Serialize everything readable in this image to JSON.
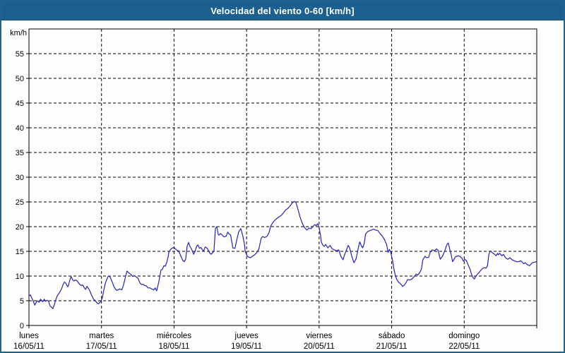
{
  "window": {
    "title": "Velocidad del viento 0-60 [km/h]"
  },
  "colors": {
    "titlebar_bg": "#1c6090",
    "titlebar_text": "#ffffff",
    "window_border": "#20638f",
    "background": "#fdfefd",
    "plot_background": "#fefefe",
    "grid": "#000000",
    "axis": "#000000",
    "text": "#000000",
    "line": "#2424b4"
  },
  "chart_data": {
    "type": "line",
    "title": "Velocidad del viento 0-60 [km/h]",
    "ylabel": "km/h",
    "ylim": [
      0,
      60
    ],
    "yticks": [
      0,
      5,
      10,
      15,
      20,
      25,
      30,
      35,
      40,
      45,
      50,
      55
    ],
    "grid": "dashed",
    "legend": "none",
    "x_axis": {
      "unit": "days",
      "range_days": [
        0,
        7
      ],
      "day_labels": [
        {
          "name": "lunes",
          "date": "16/05/11"
        },
        {
          "name": "martes",
          "date": "17/05/11"
        },
        {
          "name": "miércoles",
          "date": "18/05/11"
        },
        {
          "name": "jueves",
          "date": "19/05/11"
        },
        {
          "name": "viernes",
          "date": "20/05/11"
        },
        {
          "name": "sábado",
          "date": "21/05/11"
        },
        {
          "name": "domingo",
          "date": "22/05/11"
        }
      ]
    },
    "series": [
      {
        "name": "velocidad del viento",
        "color": "#2424b4",
        "points": [
          [
            0.0,
            5.9
          ],
          [
            0.02,
            6.2
          ],
          [
            0.04,
            5.5
          ],
          [
            0.06,
            4.9
          ],
          [
            0.08,
            4.1
          ],
          [
            0.1,
            4.7
          ],
          [
            0.12,
            5.0
          ],
          [
            0.14,
            4.7
          ],
          [
            0.16,
            5.3
          ],
          [
            0.18,
            5.0
          ],
          [
            0.19,
            4.8
          ],
          [
            0.21,
            5.3
          ],
          [
            0.23,
            4.9
          ],
          [
            0.25,
            5.1
          ],
          [
            0.27,
            4.9
          ],
          [
            0.29,
            4.0
          ],
          [
            0.31,
            3.7
          ],
          [
            0.33,
            3.4
          ],
          [
            0.35,
            4.2
          ],
          [
            0.37,
            5.2
          ],
          [
            0.39,
            6.0
          ],
          [
            0.41,
            6.4
          ],
          [
            0.43,
            6.9
          ],
          [
            0.45,
            7.4
          ],
          [
            0.47,
            8.3
          ],
          [
            0.49,
            8.8
          ],
          [
            0.51,
            8.5
          ],
          [
            0.53,
            7.9
          ],
          [
            0.54,
            7.9
          ],
          [
            0.56,
            9.0
          ],
          [
            0.58,
            9.9
          ],
          [
            0.6,
            9.3
          ],
          [
            0.62,
            9.0
          ],
          [
            0.64,
            9.2
          ],
          [
            0.66,
            9.1
          ],
          [
            0.68,
            8.7
          ],
          [
            0.7,
            8.3
          ],
          [
            0.72,
            8.1
          ],
          [
            0.74,
            8.2
          ],
          [
            0.76,
            7.7
          ],
          [
            0.78,
            7.3
          ],
          [
            0.8,
            7.9
          ],
          [
            0.82,
            7.5
          ],
          [
            0.84,
            7.0
          ],
          [
            0.86,
            6.2
          ],
          [
            0.88,
            5.7
          ],
          [
            0.89,
            5.3
          ],
          [
            0.91,
            5.1
          ],
          [
            0.93,
            4.7
          ],
          [
            0.95,
            4.4
          ],
          [
            0.97,
            4.5
          ],
          [
            0.99,
            4.9
          ],
          [
            1.01,
            5.5
          ],
          [
            1.03,
            7.0
          ],
          [
            1.05,
            8.4
          ],
          [
            1.07,
            9.2
          ],
          [
            1.09,
            9.9
          ],
          [
            1.11,
            10.0
          ],
          [
            1.13,
            9.4
          ],
          [
            1.15,
            8.7
          ],
          [
            1.17,
            7.9
          ],
          [
            1.19,
            7.4
          ],
          [
            1.21,
            7.1
          ],
          [
            1.24,
            7.3
          ],
          [
            1.25,
            7.4
          ],
          [
            1.28,
            7.2
          ],
          [
            1.3,
            8.0
          ],
          [
            1.32,
            9.2
          ],
          [
            1.35,
            11.0
          ],
          [
            1.38,
            10.6
          ],
          [
            1.4,
            10.4
          ],
          [
            1.43,
            9.9
          ],
          [
            1.45,
            10.1
          ],
          [
            1.48,
            9.8
          ],
          [
            1.5,
            9.6
          ],
          [
            1.53,
            8.6
          ],
          [
            1.55,
            8.3
          ],
          [
            1.58,
            8.3
          ],
          [
            1.59,
            8.1
          ],
          [
            1.62,
            8.0
          ],
          [
            1.64,
            7.6
          ],
          [
            1.67,
            7.6
          ],
          [
            1.69,
            7.4
          ],
          [
            1.72,
            7.2
          ],
          [
            1.74,
            7.6
          ],
          [
            1.76,
            7.0
          ],
          [
            1.79,
            8.8
          ],
          [
            1.82,
            11.2
          ],
          [
            1.84,
            11.4
          ],
          [
            1.86,
            12.1
          ],
          [
            1.88,
            12.0
          ],
          [
            1.9,
            12.8
          ],
          [
            1.92,
            14.0
          ],
          [
            1.93,
            14.9
          ],
          [
            1.96,
            15.5
          ],
          [
            1.98,
            15.7
          ],
          [
            2.0,
            15.8
          ],
          [
            2.02,
            15.5
          ],
          [
            2.04,
            15.2
          ],
          [
            2.06,
            15.1
          ],
          [
            2.08,
            14.5
          ],
          [
            2.1,
            13.8
          ],
          [
            2.12,
            13.2
          ],
          [
            2.14,
            12.9
          ],
          [
            2.16,
            13.4
          ],
          [
            2.18,
            16.0
          ],
          [
            2.2,
            16.8
          ],
          [
            2.22,
            16.0
          ],
          [
            2.24,
            15.5
          ],
          [
            2.26,
            14.8
          ],
          [
            2.27,
            14.4
          ],
          [
            2.29,
            15.0
          ],
          [
            2.31,
            16.0
          ],
          [
            2.33,
            16.3
          ],
          [
            2.35,
            15.6
          ],
          [
            2.37,
            15.8
          ],
          [
            2.39,
            15.3
          ],
          [
            2.41,
            15.1
          ],
          [
            2.43,
            15.9
          ],
          [
            2.45,
            15.7
          ],
          [
            2.47,
            15.3
          ],
          [
            2.49,
            14.7
          ],
          [
            2.51,
            14.4
          ],
          [
            2.53,
            14.7
          ],
          [
            2.55,
            15.0
          ],
          [
            2.57,
            19.6
          ],
          [
            2.59,
            20.0
          ],
          [
            2.61,
            18.4
          ],
          [
            2.62,
            18.3
          ],
          [
            2.64,
            18.6
          ],
          [
            2.67,
            18.2
          ],
          [
            2.69,
            17.9
          ],
          [
            2.72,
            18.1
          ],
          [
            2.74,
            18.9
          ],
          [
            2.76,
            18.5
          ],
          [
            2.78,
            18.3
          ],
          [
            2.81,
            15.7
          ],
          [
            2.84,
            15.6
          ],
          [
            2.86,
            17.0
          ],
          [
            2.89,
            18.9
          ],
          [
            2.92,
            19.6
          ],
          [
            2.95,
            18.0
          ],
          [
            2.97,
            16.5
          ],
          [
            2.98,
            15.1
          ],
          [
            3.0,
            14.3
          ],
          [
            3.02,
            13.9
          ],
          [
            3.05,
            13.7
          ],
          [
            3.08,
            14.0
          ],
          [
            3.11,
            14.3
          ],
          [
            3.14,
            14.7
          ],
          [
            3.17,
            15.5
          ],
          [
            3.2,
            17.6
          ],
          [
            3.22,
            18.0
          ],
          [
            3.25,
            17.8
          ],
          [
            3.28,
            18.0
          ],
          [
            3.31,
            18.8
          ],
          [
            3.33,
            20.0
          ],
          [
            3.36,
            20.8
          ],
          [
            3.39,
            21.3
          ],
          [
            3.42,
            21.7
          ],
          [
            3.45,
            22.0
          ],
          [
            3.48,
            22.3
          ],
          [
            3.51,
            22.8
          ],
          [
            3.54,
            23.4
          ],
          [
            3.57,
            23.7
          ],
          [
            3.6,
            24.2
          ],
          [
            3.63,
            24.8
          ],
          [
            3.66,
            25.1
          ],
          [
            3.68,
            24.9
          ],
          [
            3.71,
            23.4
          ],
          [
            3.74,
            21.8
          ],
          [
            3.77,
            20.6
          ],
          [
            3.8,
            19.8
          ],
          [
            3.83,
            19.3
          ],
          [
            3.86,
            19.7
          ],
          [
            3.89,
            19.6
          ],
          [
            3.92,
            20.1
          ],
          [
            3.94,
            20.4
          ],
          [
            3.96,
            20.2
          ],
          [
            3.98,
            20.6
          ],
          [
            4.0,
            19.8
          ],
          [
            4.02,
            18.2
          ],
          [
            4.03,
            16.9
          ],
          [
            4.05,
            16.3
          ],
          [
            4.07,
            16.0
          ],
          [
            4.09,
            16.4
          ],
          [
            4.12,
            15.7
          ],
          [
            4.15,
            16.2
          ],
          [
            4.18,
            15.5
          ],
          [
            4.21,
            15.3
          ],
          [
            4.24,
            15.1
          ],
          [
            4.27,
            15.3
          ],
          [
            4.3,
            14.0
          ],
          [
            4.33,
            13.3
          ],
          [
            4.35,
            14.3
          ],
          [
            4.37,
            15.0
          ],
          [
            4.4,
            16.2
          ],
          [
            4.42,
            15.7
          ],
          [
            4.45,
            14.0
          ],
          [
            4.48,
            12.7
          ],
          [
            4.51,
            13.5
          ],
          [
            4.54,
            15.7
          ],
          [
            4.56,
            16.9
          ],
          [
            4.58,
            16.2
          ],
          [
            4.6,
            15.7
          ],
          [
            4.62,
            16.5
          ],
          [
            4.64,
            18.5
          ],
          [
            4.67,
            19.0
          ],
          [
            4.7,
            19.2
          ],
          [
            4.72,
            19.3
          ],
          [
            4.75,
            19.5
          ],
          [
            4.78,
            19.3
          ],
          [
            4.81,
            19.2
          ],
          [
            4.84,
            18.6
          ],
          [
            4.87,
            18.1
          ],
          [
            4.9,
            17.4
          ],
          [
            4.93,
            16.4
          ],
          [
            4.95,
            14.8
          ],
          [
            4.97,
            15.4
          ],
          [
            4.99,
            14.6
          ],
          [
            5.01,
            13.3
          ],
          [
            5.03,
            11.5
          ],
          [
            5.05,
            10.2
          ],
          [
            5.07,
            9.3
          ],
          [
            5.1,
            8.7
          ],
          [
            5.13,
            8.3
          ],
          [
            5.15,
            7.9
          ],
          [
            5.17,
            8.1
          ],
          [
            5.2,
            8.7
          ],
          [
            5.22,
            9.3
          ],
          [
            5.25,
            9.2
          ],
          [
            5.28,
            9.4
          ],
          [
            5.31,
            9.9
          ],
          [
            5.34,
            10.4
          ],
          [
            5.36,
            10.2
          ],
          [
            5.39,
            10.8
          ],
          [
            5.41,
            11.4
          ],
          [
            5.43,
            13.3
          ],
          [
            5.46,
            14.0
          ],
          [
            5.48,
            13.7
          ],
          [
            5.51,
            13.8
          ],
          [
            5.53,
            14.8
          ],
          [
            5.56,
            15.3
          ],
          [
            5.59,
            15.1
          ],
          [
            5.62,
            15.5
          ],
          [
            5.64,
            15.2
          ],
          [
            5.67,
            13.4
          ],
          [
            5.7,
            14.0
          ],
          [
            5.73,
            15.0
          ],
          [
            5.76,
            16.3
          ],
          [
            5.78,
            16.7
          ],
          [
            5.8,
            15.5
          ],
          [
            5.82,
            14.3
          ],
          [
            5.84,
            12.9
          ],
          [
            5.86,
            13.4
          ],
          [
            5.88,
            13.9
          ],
          [
            5.91,
            14.1
          ],
          [
            5.94,
            14.0
          ],
          [
            5.97,
            13.6
          ],
          [
            5.99,
            13.0
          ],
          [
            6.01,
            13.4
          ],
          [
            6.03,
            13.1
          ],
          [
            6.05,
            12.4
          ],
          [
            6.08,
            11.4
          ],
          [
            6.1,
            10.4
          ],
          [
            6.12,
            9.7
          ],
          [
            6.14,
            9.4
          ],
          [
            6.16,
            10.0
          ],
          [
            6.19,
            10.5
          ],
          [
            6.22,
            11.0
          ],
          [
            6.25,
            11.5
          ],
          [
            6.28,
            11.7
          ],
          [
            6.3,
            11.6
          ],
          [
            6.32,
            12.0
          ],
          [
            6.34,
            14.4
          ],
          [
            6.36,
            15.1
          ],
          [
            6.39,
            14.7
          ],
          [
            6.42,
            14.4
          ],
          [
            6.44,
            14.1
          ],
          [
            6.46,
            14.6
          ],
          [
            6.47,
            14.3
          ],
          [
            6.49,
            14.6
          ],
          [
            6.52,
            14.1
          ],
          [
            6.54,
            14.4
          ],
          [
            6.57,
            13.7
          ],
          [
            6.6,
            13.4
          ],
          [
            6.63,
            13.7
          ],
          [
            6.66,
            13.3
          ],
          [
            6.69,
            13.1
          ],
          [
            6.72,
            12.9
          ],
          [
            6.75,
            12.9
          ],
          [
            6.78,
            13.1
          ],
          [
            6.8,
            12.8
          ],
          [
            6.82,
            12.5
          ],
          [
            6.84,
            12.7
          ],
          [
            6.87,
            12.3
          ],
          [
            6.9,
            12.1
          ],
          [
            6.92,
            12.4
          ],
          [
            6.94,
            12.7
          ],
          [
            6.97,
            12.8
          ],
          [
            6.99,
            12.9
          ]
        ]
      }
    ]
  }
}
